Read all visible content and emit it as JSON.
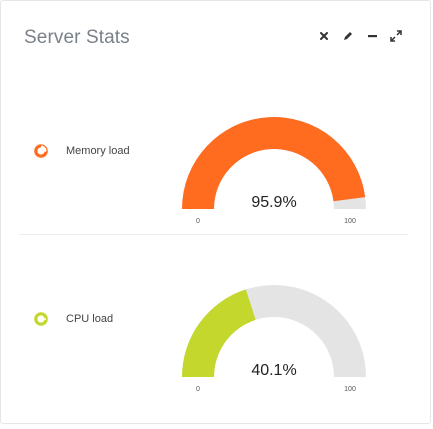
{
  "panel": {
    "title": "Server Stats"
  },
  "tools": [
    {
      "name": "close-icon"
    },
    {
      "name": "pencil-icon"
    },
    {
      "name": "minimize-icon"
    },
    {
      "name": "expand-icon"
    }
  ],
  "stats": [
    {
      "label": "Memory load",
      "value": 95.9,
      "value_text": "95.9%",
      "min_label": "0",
      "max_label": "100",
      "max": 100,
      "color": "#ff6c1f",
      "icon": "pie-icon"
    },
    {
      "label": "CPU load",
      "value": 40.1,
      "value_text": "40.1%",
      "min_label": "0",
      "max_label": "100",
      "max": 100,
      "color": "#c4d72c",
      "icon": "pie-icon"
    }
  ],
  "colors": {
    "track": "#e4e4e4",
    "title": "#7a8189"
  }
}
